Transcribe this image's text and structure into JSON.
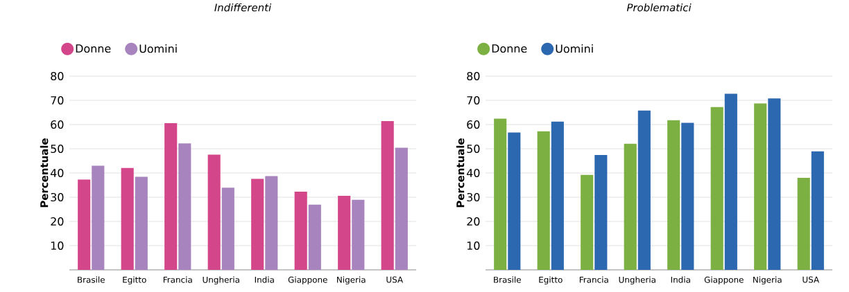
{
  "chart_data": [
    {
      "type": "bar",
      "title": "Indifferenti",
      "ylabel": "Percentuale",
      "categories": [
        "Brasile",
        "Egitto",
        "Francia",
        "Ungheria",
        "India",
        "Giappone",
        "Nigeria",
        "USA"
      ],
      "series": [
        {
          "name": "Donne",
          "color": "#d4468a",
          "values": [
            37.3,
            42.1,
            60.6,
            47.6,
            37.6,
            32.3,
            30.6,
            61.4
          ]
        },
        {
          "name": "Uomini",
          "color": "#a784bd",
          "values": [
            43.0,
            38.4,
            52.2,
            33.9,
            38.7,
            26.9,
            28.9,
            50.4
          ]
        }
      ],
      "ylim": [
        0,
        80
      ],
      "yticks": [
        10,
        20,
        30,
        40,
        50,
        60,
        70,
        80
      ],
      "grid": "y",
      "legend": "top left"
    },
    {
      "type": "bar",
      "title": "Problematici",
      "ylabel": "Percentuale",
      "categories": [
        "Brasile",
        "Egitto",
        "Francia",
        "Ungheria",
        "India",
        "Giappone",
        "Nigeria",
        "USA"
      ],
      "series": [
        {
          "name": "Donne",
          "color": "#7cb042",
          "values": [
            62.4,
            57.2,
            39.2,
            52.1,
            61.8,
            67.2,
            68.7,
            38.0
          ]
        },
        {
          "name": "Uomini",
          "color": "#2b68b0",
          "values": [
            56.7,
            61.2,
            47.4,
            65.8,
            60.7,
            72.7,
            70.8,
            48.9
          ]
        }
      ],
      "ylim": [
        0,
        80
      ],
      "yticks": [
        10,
        20,
        30,
        40,
        50,
        60,
        70,
        80
      ],
      "grid": "y",
      "legend": "top left"
    }
  ]
}
